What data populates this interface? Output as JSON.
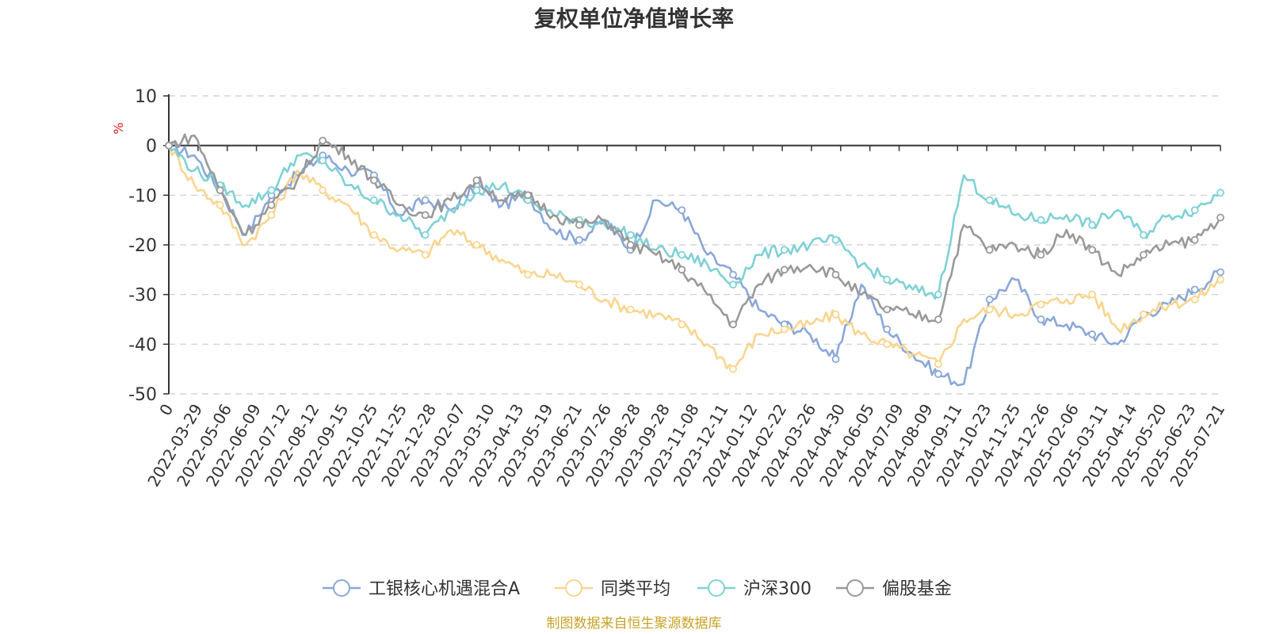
{
  "chart_data": {
    "type": "line",
    "title": "复权单位净值增长率",
    "y_unit": "%",
    "ylim": [
      -50,
      10
    ],
    "y_ticks": [
      "10",
      "0",
      "-10",
      "-20",
      "-30",
      "-40",
      "-50"
    ],
    "x_tick_labels": [
      "0",
      "2022-03-29",
      "2022-05-06",
      "2022-06-09",
      "2022-07-12",
      "2022-08-12",
      "2022-09-15",
      "2022-10-25",
      "2022-11-25",
      "2022-12-28",
      "2023-02-07",
      "2023-03-10",
      "2023-04-13",
      "2023-05-19",
      "2023-06-21",
      "2023-07-26",
      "2023-08-28",
      "2023-09-28",
      "2023-11-08",
      "2023-12-11",
      "2024-01-12",
      "2024-02-22",
      "2024-03-26",
      "2024-04-30",
      "2024-06-05",
      "2024-07-09",
      "2024-08-09",
      "2024-09-11",
      "2024-10-23",
      "2024-11-25",
      "2024-12-26",
      "2025-02-06",
      "2025-03-11",
      "2025-04-14",
      "2025-05-20",
      "2025-06-23",
      "2025-07-21"
    ],
    "grid": true,
    "legend_position": "bottom",
    "series": [
      {
        "name": "工银核心机遇混合A",
        "color": "#8aa8d8",
        "values": [
          0,
          -2,
          -9,
          -18,
          -10,
          -6,
          -2,
          -5,
          -6,
          -14,
          -11,
          -13,
          -8,
          -12,
          -10,
          -17,
          -19,
          -15,
          -21,
          -11,
          -13,
          -22,
          -26,
          -33,
          -36,
          -38,
          -43,
          -28,
          -37,
          -42,
          -46,
          -48,
          -31,
          -27,
          -35,
          -36,
          -38,
          -40,
          -34,
          -32,
          -29,
          -25.5
        ]
      },
      {
        "name": "同类平均",
        "color": "#f9d58f",
        "values": [
          0,
          -8,
          -12,
          -20,
          -14,
          -5,
          -9,
          -12,
          -18,
          -21,
          -22,
          -17,
          -20,
          -23,
          -26,
          -26,
          -28,
          -31,
          -33,
          -34,
          -36,
          -40,
          -45,
          -38,
          -37,
          -36,
          -34,
          -38,
          -40,
          -42,
          -44,
          -35,
          -33,
          -34,
          -32,
          -31,
          -30,
          -37,
          -34,
          -32,
          -31,
          -27
        ]
      },
      {
        "name": "沪深300",
        "color": "#7fd1d6",
        "values": [
          0,
          -5,
          -8,
          -12,
          -9,
          -2,
          -3,
          -8,
          -11,
          -14,
          -18,
          -13,
          -9,
          -8,
          -11,
          -14,
          -15,
          -16,
          -18,
          -21,
          -22,
          -24,
          -28,
          -22,
          -21,
          -20,
          -19,
          -24,
          -27,
          -29,
          -30,
          -6,
          -11,
          -14,
          -15,
          -14,
          -16,
          -13,
          -18,
          -14,
          -13,
          -9.5
        ]
      },
      {
        "name": "偏股基金",
        "color": "#999999",
        "values": [
          0,
          2,
          -9,
          -18,
          -12,
          -7,
          1,
          -2,
          -7,
          -12,
          -14,
          -11,
          -7,
          -11,
          -10,
          -14,
          -16,
          -15,
          -20,
          -22,
          -25,
          -30,
          -36,
          -28,
          -25,
          -24,
          -26,
          -30,
          -33,
          -34,
          -35,
          -16,
          -21,
          -20,
          -22,
          -17,
          -21,
          -26,
          -22,
          -20,
          -19,
          -14.5
        ]
      }
    ]
  },
  "source_text": "制图数据来自恒生聚源数据库"
}
